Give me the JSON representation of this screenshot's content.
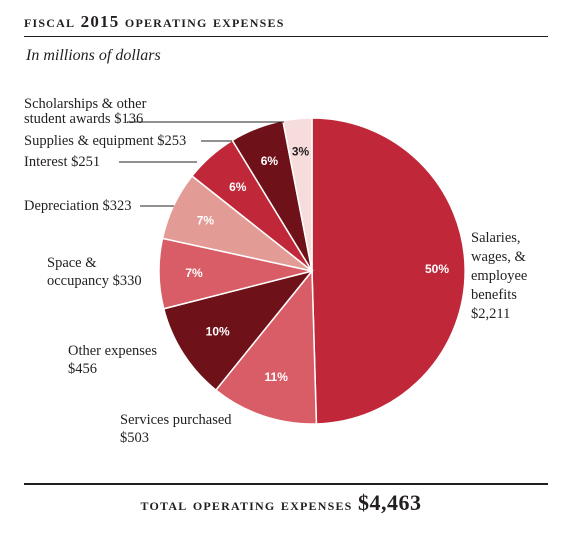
{
  "title": "Fiscal 2015 Operating Expenses",
  "subtitle": "In millions of dollars",
  "total": {
    "label": "Total Operating Expenses",
    "value": "$4,463"
  },
  "chart_data": {
    "type": "pie",
    "title": "Fiscal 2015 Operating Expenses",
    "subtitle": "In millions of dollars",
    "total": 4463,
    "slices": [
      {
        "label_lines": [
          "Salaries,",
          "wages, &",
          "employee",
          "benefits",
          "$2,211"
        ],
        "value": 2211,
        "percent_label": "50%",
        "color": "#c0283a",
        "pct_color": "#ffffff"
      },
      {
        "label_lines": [
          "Services purchased",
          "$503"
        ],
        "value": 503,
        "percent_label": "11%",
        "color": "#d95d66",
        "pct_color": "#ffffff"
      },
      {
        "label_lines": [
          "Other expenses",
          "$456"
        ],
        "value": 456,
        "percent_label": "10%",
        "color": "#6e1118",
        "pct_color": "#ffffff"
      },
      {
        "label_lines": [
          "Space &",
          "occupancy $330"
        ],
        "value": 330,
        "percent_label": "7%",
        "color": "#d95d66",
        "pct_color": "#ffffff"
      },
      {
        "label_lines": [
          "Depreciation $323"
        ],
        "value": 323,
        "percent_label": "7%",
        "color": "#e39b96",
        "pct_color": "#ffffff"
      },
      {
        "label_lines": [
          "Interest $251"
        ],
        "value": 251,
        "percent_label": "6%",
        "color": "#c0283a",
        "pct_color": "#ffffff"
      },
      {
        "label_lines": [
          "Supplies & equipment $253"
        ],
        "value": 253,
        "percent_label": "6%",
        "color": "#6e1118",
        "pct_color": "#ffffff"
      },
      {
        "label_lines": [
          "Scholarships & other",
          "student awards $136"
        ],
        "value": 136,
        "percent_label": "3%",
        "color": "#f6dcdb",
        "pct_color": "#231f20"
      }
    ]
  }
}
